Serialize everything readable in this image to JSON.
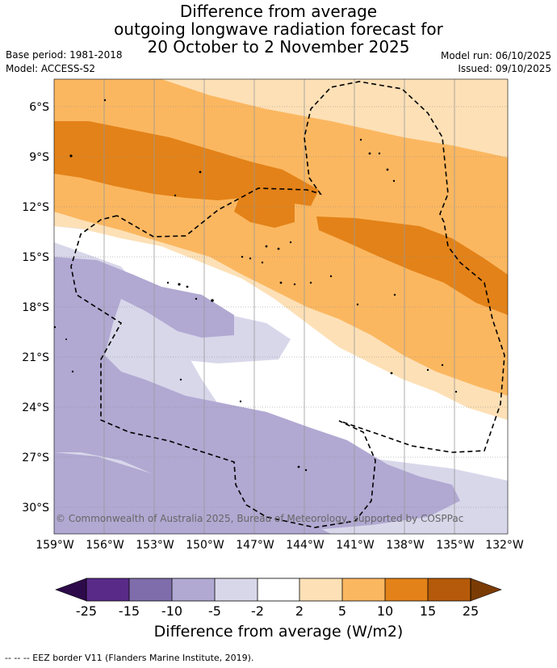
{
  "title": {
    "line1": "Difference from average",
    "line2": "outgoing longwave radiation forecast for",
    "line3": "20 October to 2 November 2025"
  },
  "meta": {
    "base_period": "Base period: 1981-2018",
    "model": "Model: ACCESS-S2",
    "model_run": "Model run: 06/10/2025",
    "issued": "Issued: 09/10/2025"
  },
  "map": {
    "lat_labels": [
      "6°S",
      "9°S",
      "12°S",
      "15°S",
      "18°S",
      "21°S",
      "24°S",
      "27°S",
      "30°S"
    ],
    "lon_labels": [
      "159°W",
      "156°W",
      "153°W",
      "150°W",
      "147°W",
      "144°W",
      "141°W",
      "138°W",
      "135°W",
      "132°W"
    ],
    "copyright": "© Commonwealth of Australia 2025, Bureau of Meteorology, supported by COSPPac"
  },
  "colorbar": {
    "ticks": [
      "-25",
      "-15",
      "-10",
      "-5",
      "-2",
      "2",
      "5",
      "10",
      "15",
      "25"
    ],
    "label": "Difference from average (W/m2)",
    "colors": {
      "under": "#2d0b4a",
      "c1": "#5a2a88",
      "c2": "#7f6dab",
      "c3": "#b1a9d2",
      "c4": "#d8d7ea",
      "c5": "#ffffff",
      "c6": "#fde0b6",
      "c7": "#fbb760",
      "c8": "#e38218",
      "c9": "#b55a0a",
      "over": "#7b3b05"
    }
  },
  "footer": {
    "text": "--  --  -- EEZ border V11 (Flanders Marine Institute, 2019)."
  }
}
